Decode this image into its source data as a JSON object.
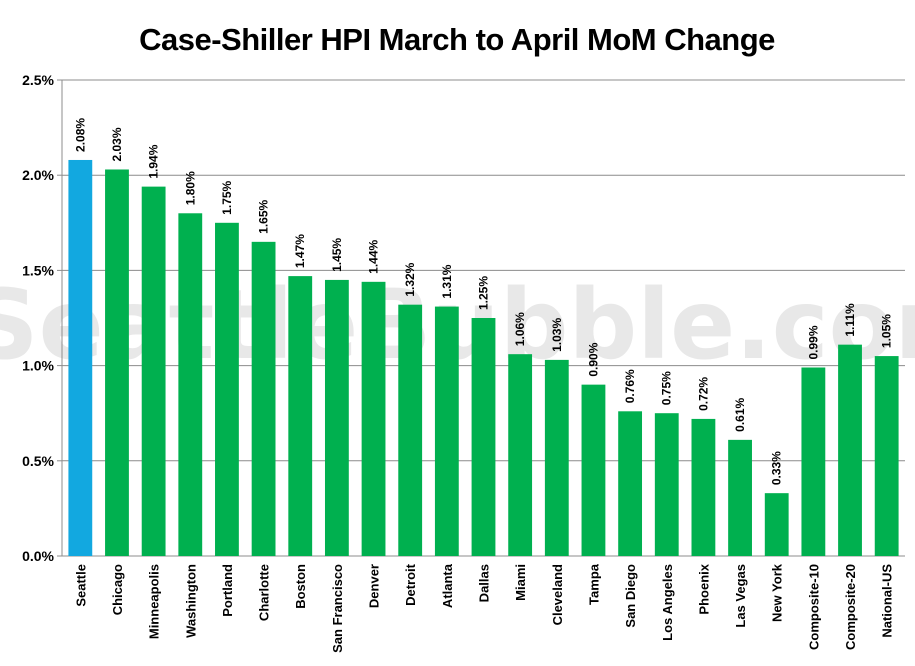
{
  "chart_data": {
    "type": "bar",
    "title": "Case-Shiller HPI March to April MoM Change",
    "watermark": "SeattleBubble.com",
    "xlabel": "",
    "ylabel": "",
    "ylim": [
      0,
      0.025
    ],
    "y_ticks": [
      0,
      0.005,
      0.01,
      0.015,
      0.02,
      0.025
    ],
    "y_tick_labels": [
      "0.0%",
      "0.5%",
      "1.0%",
      "1.5%",
      "2.0%",
      "2.5%"
    ],
    "grid": true,
    "legend": "none",
    "highlight_color": "#12a8e0",
    "bar_color": "#00b04f",
    "categories": [
      "Seattle",
      "Chicago",
      "Minneapolis",
      "Washington",
      "Portland",
      "Charlotte",
      "Boston",
      "San Francisco",
      "Denver",
      "Detroit",
      "Atlanta",
      "Dallas",
      "Miami",
      "Cleveland",
      "Tampa",
      "San Diego",
      "Los Angeles",
      "Phoenix",
      "Las Vegas",
      "New York",
      "Composite-10",
      "Composite-20",
      "National-US"
    ],
    "values": [
      0.0208,
      0.0203,
      0.0194,
      0.018,
      0.0175,
      0.0165,
      0.0147,
      0.0145,
      0.0144,
      0.0132,
      0.0131,
      0.0125,
      0.0106,
      0.0103,
      0.009,
      0.0076,
      0.0075,
      0.0072,
      0.0061,
      0.0033,
      0.0099,
      0.0111,
      0.0105
    ],
    "data_labels": [
      "2.08%",
      "2.03%",
      "1.94%",
      "1.80%",
      "1.75%",
      "1.65%",
      "1.47%",
      "1.45%",
      "1.44%",
      "1.32%",
      "1.31%",
      "1.25%",
      "1.06%",
      "1.03%",
      "0.90%",
      "0.76%",
      "0.75%",
      "0.72%",
      "0.61%",
      "0.33%",
      "0.99%",
      "1.11%",
      "1.05%"
    ],
    "highlight_index": 0
  }
}
